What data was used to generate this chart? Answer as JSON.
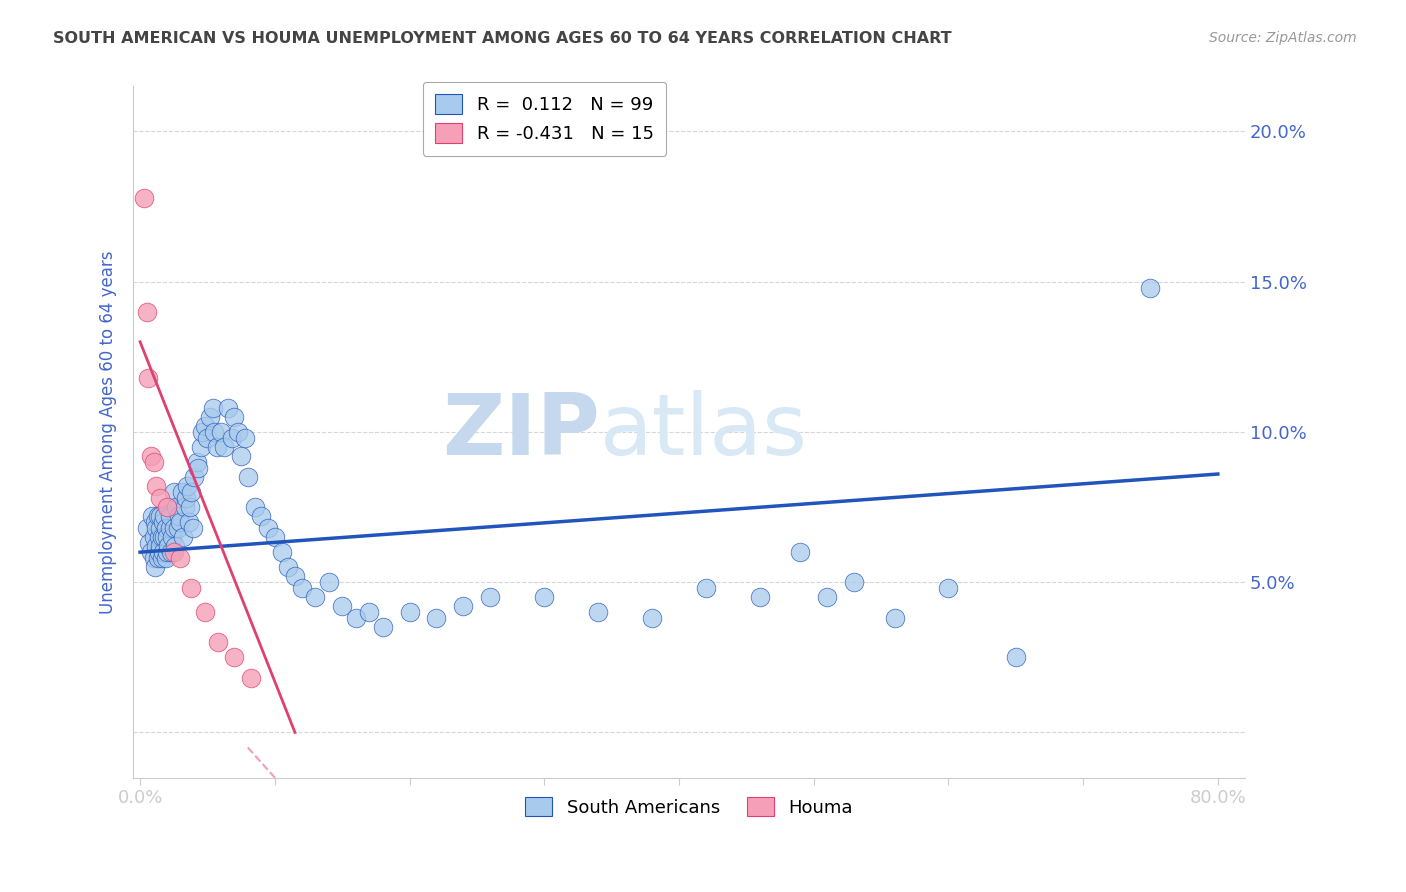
{
  "title": "SOUTH AMERICAN VS HOUMA UNEMPLOYMENT AMONG AGES 60 TO 64 YEARS CORRELATION CHART",
  "source": "Source: ZipAtlas.com",
  "ylabel": "Unemployment Among Ages 60 to 64 years",
  "xlim": [
    -0.005,
    0.82
  ],
  "ylim": [
    -0.015,
    0.215
  ],
  "ytick_vals": [
    0.0,
    0.05,
    0.1,
    0.15,
    0.2
  ],
  "ytick_labels": [
    "",
    "5.0%",
    "10.0%",
    "15.0%",
    "20.0%"
  ],
  "xtick_vals": [
    0.0,
    0.1,
    0.2,
    0.3,
    0.4,
    0.5,
    0.6,
    0.7,
    0.8
  ],
  "xtick_labels": [
    "0.0%",
    "",
    "",
    "",
    "",
    "",
    "",
    "",
    "80.0%"
  ],
  "legend_blue_label": "South Americans",
  "legend_pink_label": "Houma",
  "R_blue": 0.112,
  "N_blue": 99,
  "R_pink": -0.431,
  "N_pink": 15,
  "blue_scatter_color": "#a8caec",
  "blue_line_color": "#2255bb",
  "pink_scatter_color": "#f5a0b8",
  "pink_line_color": "#e04070",
  "watermark_color": "#ccddf0",
  "background_color": "#ffffff",
  "title_color": "#444444",
  "axis_color": "#4466cc",
  "grid_color": "#cccccc",
  "blue_x": [
    0.005,
    0.007,
    0.008,
    0.009,
    0.01,
    0.01,
    0.011,
    0.011,
    0.012,
    0.012,
    0.013,
    0.013,
    0.014,
    0.014,
    0.015,
    0.015,
    0.015,
    0.016,
    0.016,
    0.017,
    0.017,
    0.018,
    0.018,
    0.019,
    0.019,
    0.02,
    0.02,
    0.021,
    0.021,
    0.022,
    0.022,
    0.023,
    0.024,
    0.025,
    0.025,
    0.026,
    0.027,
    0.028,
    0.029,
    0.03,
    0.031,
    0.032,
    0.033,
    0.034,
    0.035,
    0.036,
    0.037,
    0.038,
    0.039,
    0.04,
    0.042,
    0.043,
    0.045,
    0.046,
    0.048,
    0.05,
    0.052,
    0.054,
    0.055,
    0.057,
    0.06,
    0.062,
    0.065,
    0.068,
    0.07,
    0.073,
    0.075,
    0.078,
    0.08,
    0.085,
    0.09,
    0.095,
    0.1,
    0.105,
    0.11,
    0.115,
    0.12,
    0.13,
    0.14,
    0.15,
    0.16,
    0.17,
    0.18,
    0.2,
    0.22,
    0.24,
    0.26,
    0.3,
    0.34,
    0.38,
    0.42,
    0.46,
    0.49,
    0.51,
    0.53,
    0.56,
    0.6,
    0.65,
    0.75
  ],
  "blue_y": [
    0.068,
    0.063,
    0.06,
    0.072,
    0.065,
    0.058,
    0.07,
    0.055,
    0.062,
    0.068,
    0.072,
    0.058,
    0.06,
    0.065,
    0.068,
    0.062,
    0.072,
    0.058,
    0.065,
    0.06,
    0.07,
    0.072,
    0.065,
    0.058,
    0.068,
    0.06,
    0.065,
    0.062,
    0.075,
    0.068,
    0.072,
    0.06,
    0.065,
    0.068,
    0.08,
    0.062,
    0.075,
    0.068,
    0.072,
    0.07,
    0.08,
    0.065,
    0.075,
    0.078,
    0.082,
    0.07,
    0.075,
    0.08,
    0.068,
    0.085,
    0.09,
    0.088,
    0.095,
    0.1,
    0.102,
    0.098,
    0.105,
    0.108,
    0.1,
    0.095,
    0.1,
    0.095,
    0.108,
    0.098,
    0.105,
    0.1,
    0.092,
    0.098,
    0.085,
    0.075,
    0.072,
    0.068,
    0.065,
    0.06,
    0.055,
    0.052,
    0.048,
    0.045,
    0.05,
    0.042,
    0.038,
    0.04,
    0.035,
    0.04,
    0.038,
    0.042,
    0.045,
    0.045,
    0.04,
    0.038,
    0.048,
    0.045,
    0.06,
    0.045,
    0.05,
    0.038,
    0.048,
    0.025,
    0.148
  ],
  "pink_x": [
    0.003,
    0.005,
    0.006,
    0.008,
    0.01,
    0.012,
    0.015,
    0.02,
    0.025,
    0.03,
    0.038,
    0.048,
    0.058,
    0.07,
    0.082
  ],
  "pink_y": [
    0.178,
    0.14,
    0.118,
    0.092,
    0.09,
    0.082,
    0.078,
    0.075,
    0.06,
    0.058,
    0.048,
    0.04,
    0.03,
    0.025,
    0.018
  ],
  "blue_trend_x": [
    0.0,
    0.8
  ],
  "blue_trend_y_start": 0.06,
  "blue_trend_y_end": 0.086,
  "pink_trend_x": [
    0.0,
    0.115
  ],
  "pink_trend_y_start": 0.13,
  "pink_trend_y_end": 0.0
}
